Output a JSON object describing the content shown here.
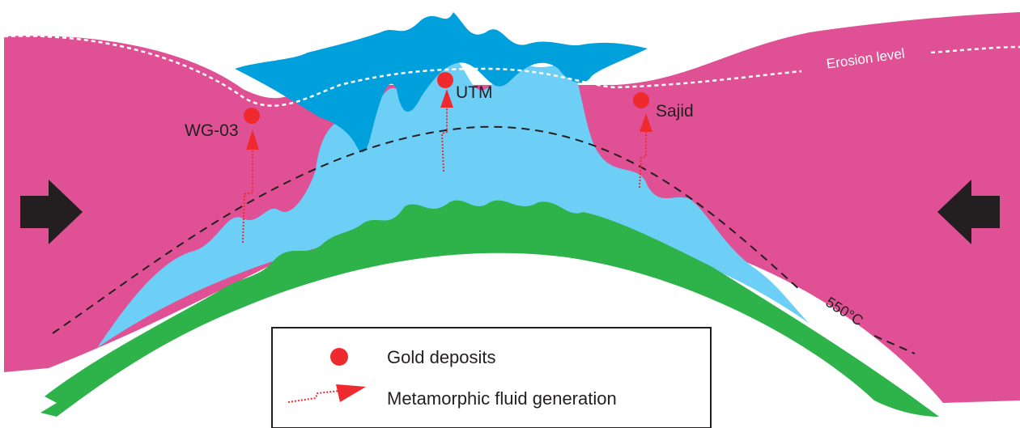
{
  "labels": {
    "erosion_level": "Erosion level",
    "isotherm": "550°C",
    "deposits": [
      "WG-03",
      "UTM",
      "Sajid"
    ]
  },
  "legend": {
    "items": [
      "Gold deposits",
      "Metamorphic fluid generation"
    ]
  }
}
